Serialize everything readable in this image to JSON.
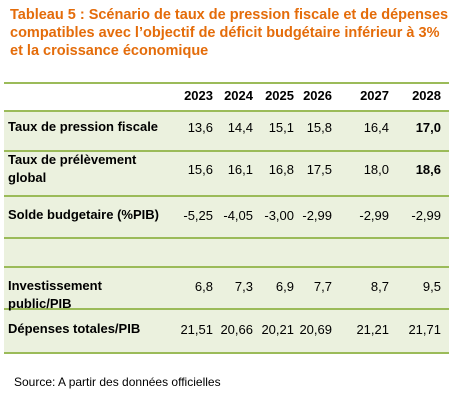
{
  "title": "Tableau 5 : Scénario de taux de pression fiscale et de dépenses compatibles avec l’objectif de déficit budgétaire inférieur à 3% et la croissance économique",
  "table": {
    "header": [
      "2023",
      "2024",
      "2025",
      "2026",
      "2027",
      "2028"
    ],
    "rows": [
      {
        "label": "Taux de pression fiscale",
        "values": [
          "13,6",
          "14,4",
          "15,1",
          "15,8",
          "16,4",
          "17,0"
        ]
      },
      {
        "label": "Taux de prélèvement global",
        "values": [
          "15,6",
          "16,1",
          "16,8",
          "17,5",
          "18,0",
          "18,6"
        ]
      },
      {
        "label": "Solde budgetaire (%PIB)",
        "values": [
          "-5,25",
          "-4,05",
          "-3,00",
          "-2,99",
          "-2,99",
          "-2,99"
        ]
      },
      {
        "label": "Investissement public/PIB",
        "values": [
          "6,8",
          "7,3",
          "6,9",
          "7,7",
          "8,7",
          "9,5"
        ]
      },
      {
        "label": "Dépenses totales/PIB",
        "values": [
          "21,51",
          "20,66",
          "20,21",
          "20,69",
          "21,21",
          "21,71"
        ]
      }
    ]
  },
  "source": "Source: A partir des données officielles"
}
